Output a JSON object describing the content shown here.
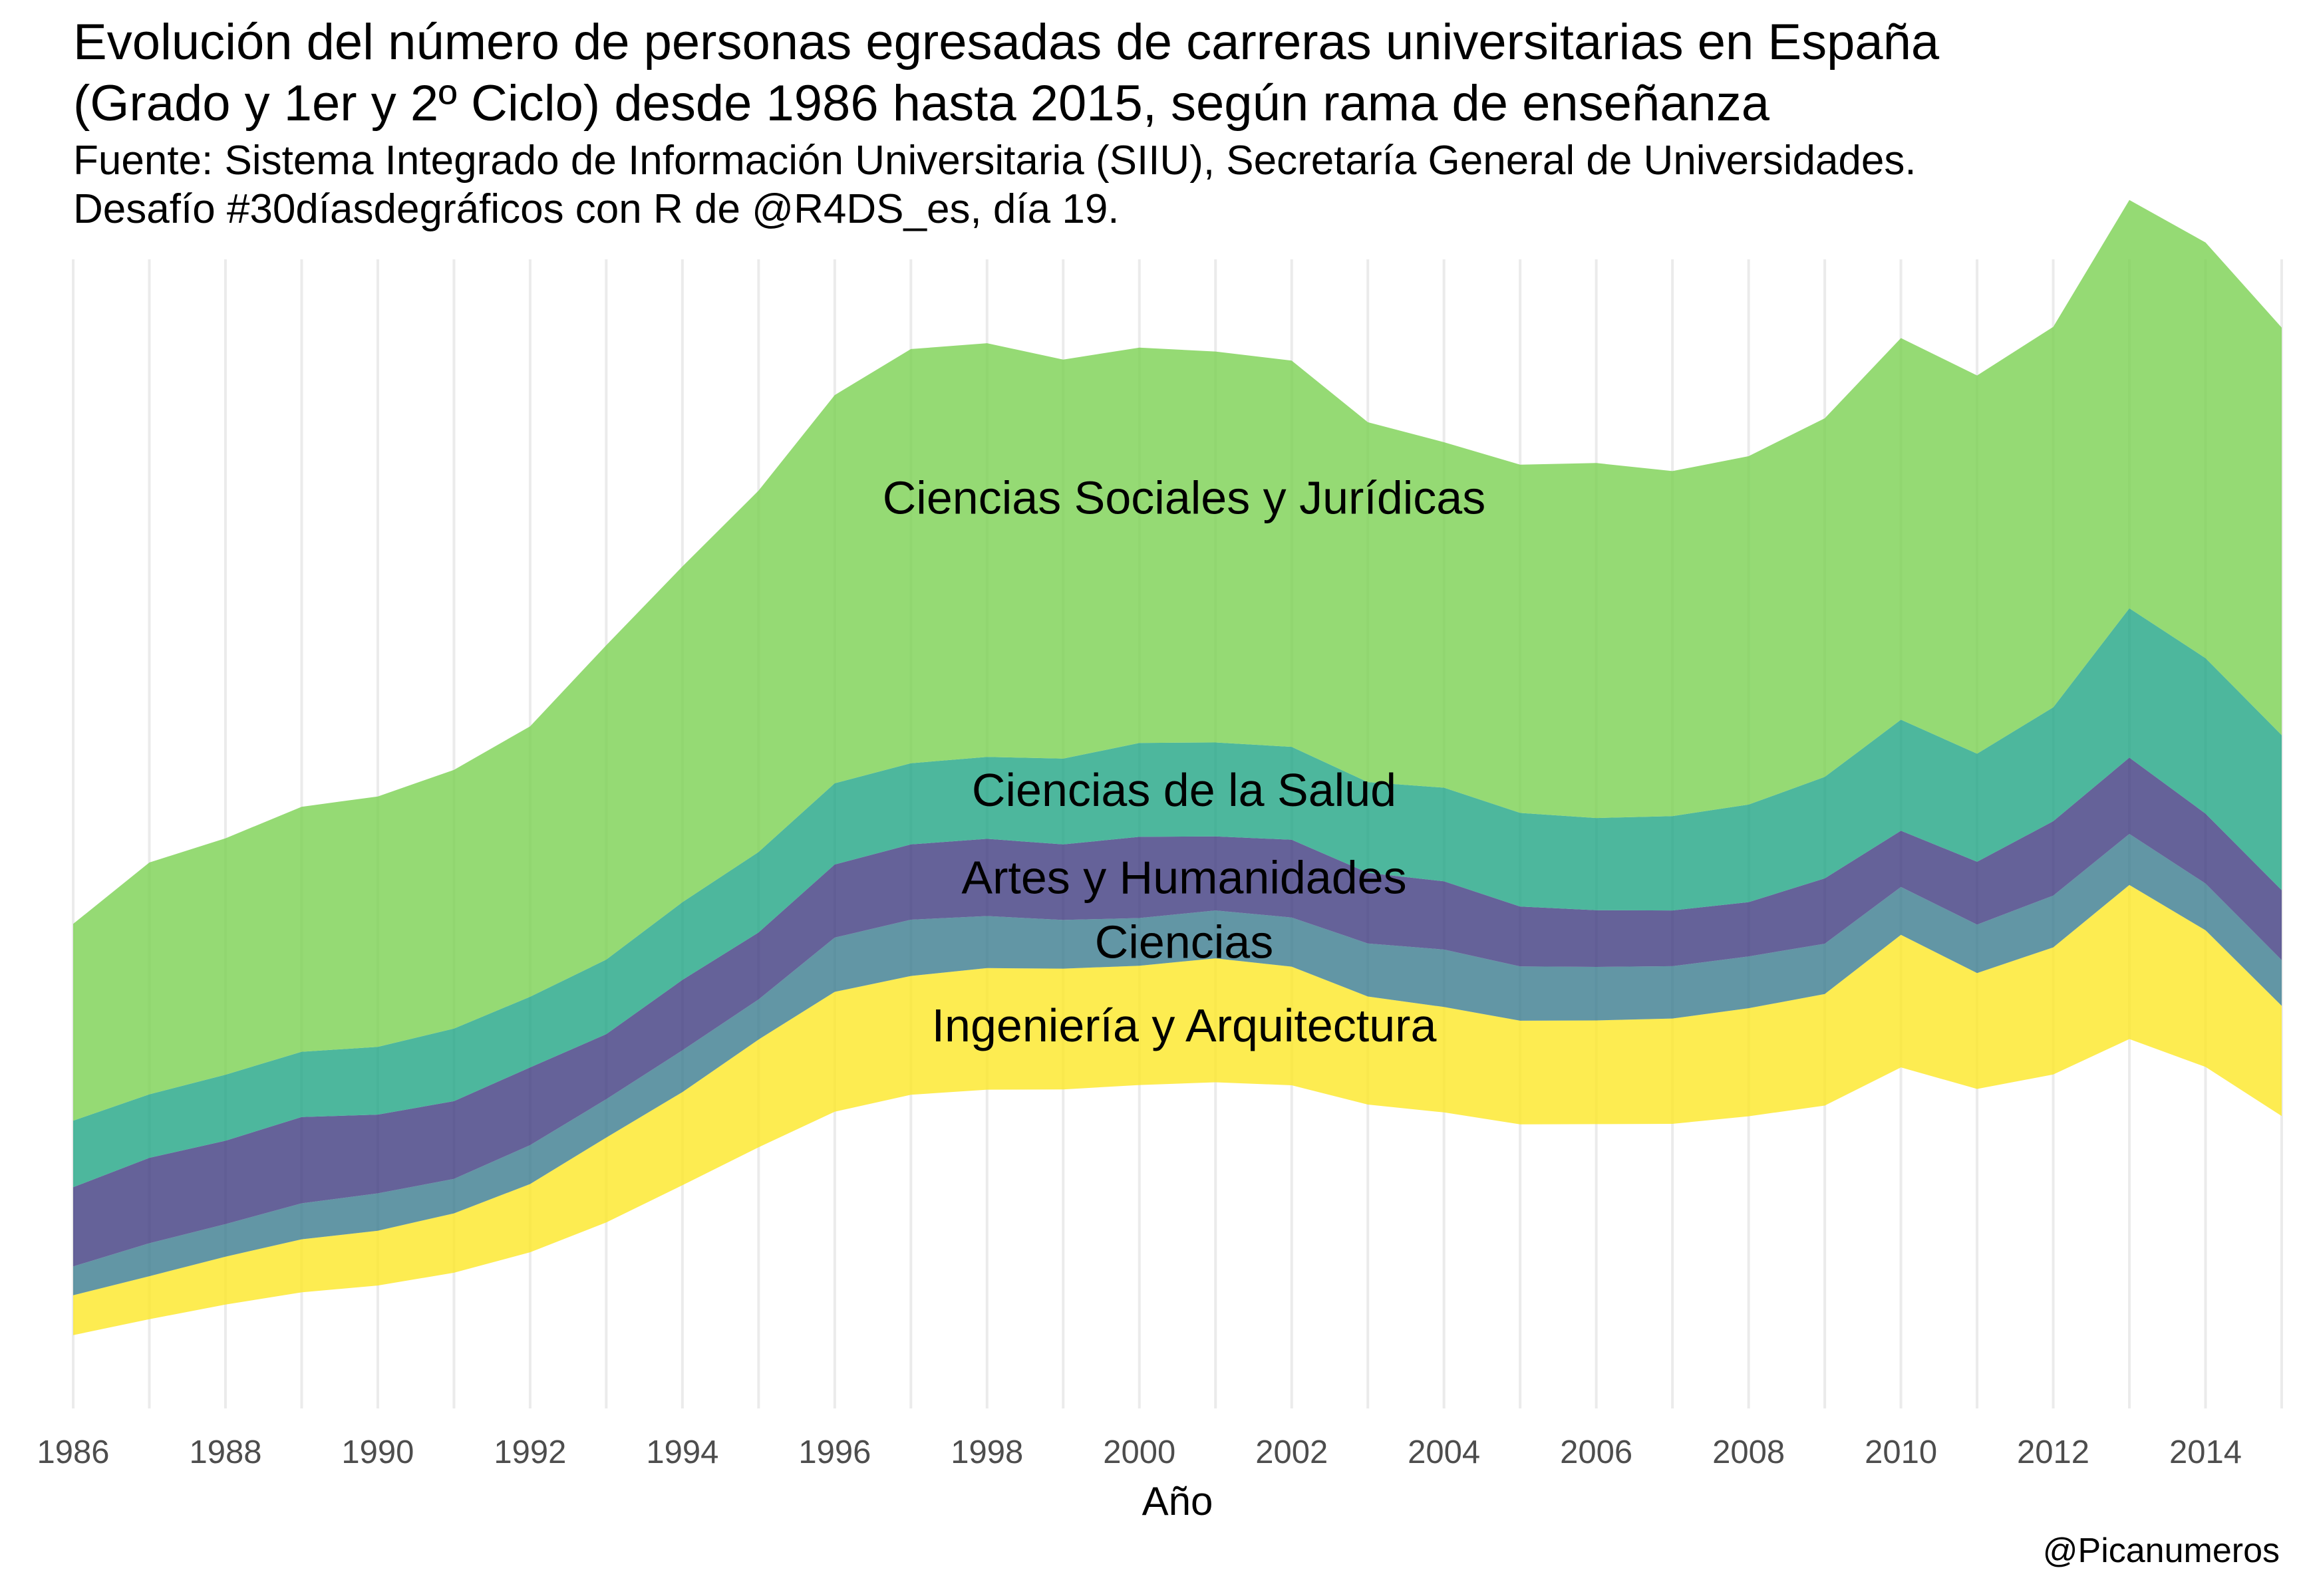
{
  "title_lines": [
    "Evolución del número de personas egresadas de carreras universitarias en España",
    "(Grado y 1er y 2º Ciclo) desde 1986 hasta 2015, según rama de enseñanza"
  ],
  "subtitle_lines": [
    "Fuente: Sistema Integrado de Información Universitaria (SIIU), Secretaría General de Universidades.",
    "Desafío #30díasdegráficos con R de @R4DS_es, día 19."
  ],
  "caption": "@Picanumeros",
  "chart_data": {
    "type": "area",
    "layout": "streamgraph (centered, no y axis shown)",
    "xlabel": "Año",
    "ylabel": "",
    "grid": "vertical lines at each year",
    "legend": "none; series labels placed inside the streams",
    "x": [
      1986,
      1987,
      1988,
      1989,
      1990,
      1991,
      1992,
      1993,
      1994,
      1995,
      1996,
      1997,
      1998,
      1999,
      2000,
      2001,
      2002,
      2003,
      2004,
      2005,
      2006,
      2007,
      2008,
      2009,
      2010,
      2011,
      2012,
      2013,
      2014,
      2015
    ],
    "x_tick_labels": [
      "1986",
      "1988",
      "1990",
      "1992",
      "1994",
      "1996",
      "1998",
      "2000",
      "2002",
      "2004",
      "2006",
      "2008",
      "2010",
      "2012",
      "2014"
    ],
    "baseline": [
      0.0,
      6.5,
      12.5,
      17.5,
      20.3,
      25.5,
      33.9,
      46.1,
      61.3,
      76.8,
      91.4,
      98.3,
      100.4,
      100.5,
      102.3,
      103.4,
      102.2,
      94.3,
      91.1,
      86.2,
      86.3,
      86.4,
      89.5,
      93.9,
      109.5,
      100.7,
      106.6,
      121.1,
      109.7,
      89.6
    ],
    "series": [
      {
        "name": "Ingeniería y Arquitectura",
        "color": "#FDE725",
        "values": [
          16.3,
          17.6,
          19.6,
          21.7,
          22.4,
          24.3,
          27.9,
          34.7,
          38.1,
          44.1,
          49.0,
          48.6,
          49.7,
          49.4,
          48.8,
          50.7,
          48.5,
          44.2,
          43.1,
          42.4,
          42.4,
          43.1,
          44.2,
          45.6,
          54.2,
          47.4,
          52.0,
          63.0,
          55.9,
          45.1
        ]
      },
      {
        "name": "Ciencias",
        "color": "#3B7C8F",
        "values": [
          11.8,
          13.5,
          13.3,
          14.7,
          15.3,
          14.1,
          15.9,
          15.7,
          17.1,
          16.4,
          22.2,
          23.0,
          21.3,
          19.9,
          19.5,
          19.6,
          20.1,
          21.7,
          23.5,
          22.2,
          21.9,
          21.4,
          21.2,
          20.6,
          19.6,
          19.8,
          21.2,
          20.9,
          19.1,
          18.7
        ]
      },
      {
        "name": "Artes y Humanidades",
        "color": "#3F3B80",
        "values": [
          32.4,
          34.9,
          34.1,
          35.3,
          32.2,
          31.8,
          31.8,
          26.6,
          28.8,
          27.4,
          29.9,
          30.8,
          31.6,
          30.9,
          33.2,
          30.3,
          31.8,
          28.9,
          27.9,
          24.5,
          23.2,
          22.8,
          22.2,
          26.7,
          23.0,
          25.7,
          30.4,
          31.2,
          28.6,
          28.6
        ]
      },
      {
        "name": "Ciencias de la Salud",
        "color": "#21A585",
        "values": [
          27.2,
          26.0,
          27.0,
          26.7,
          27.7,
          29.7,
          28.9,
          30.5,
          31.8,
          32.9,
          33.2,
          33.2,
          33.5,
          35.1,
          38.4,
          38.4,
          38.0,
          37.1,
          38.3,
          38.3,
          37.7,
          38.6,
          39.9,
          41.5,
          45.4,
          44.2,
          46.6,
          61.1,
          63.6,
          63.4
        ]
      },
      {
        "name": "Ciencias Sociales y Jurídicas",
        "color": "#7AD151",
        "values": [
          80.5,
          94.8,
          96.7,
          100.2,
          102.4,
          105.8,
          110.6,
          128.6,
          137.3,
          147.8,
          158.8,
          169.4,
          169.2,
          163.2,
          161.7,
          159.9,
          158.0,
          147.2,
          141.3,
          142.4,
          145.2,
          141.1,
          142.5,
          146.7,
          156.1,
          154.7,
          155.6,
          167.0,
          170.0,
          166.7
        ]
      }
    ],
    "series_labels_printed": [
      "Ciencias Sociales y Jurídicas",
      "Ciencias de la Salud",
      "Artes y Humanidades",
      "Ciencias",
      "Ingeniería y Arquitectura"
    ],
    "ylim": [
      -30,
      440
    ]
  }
}
